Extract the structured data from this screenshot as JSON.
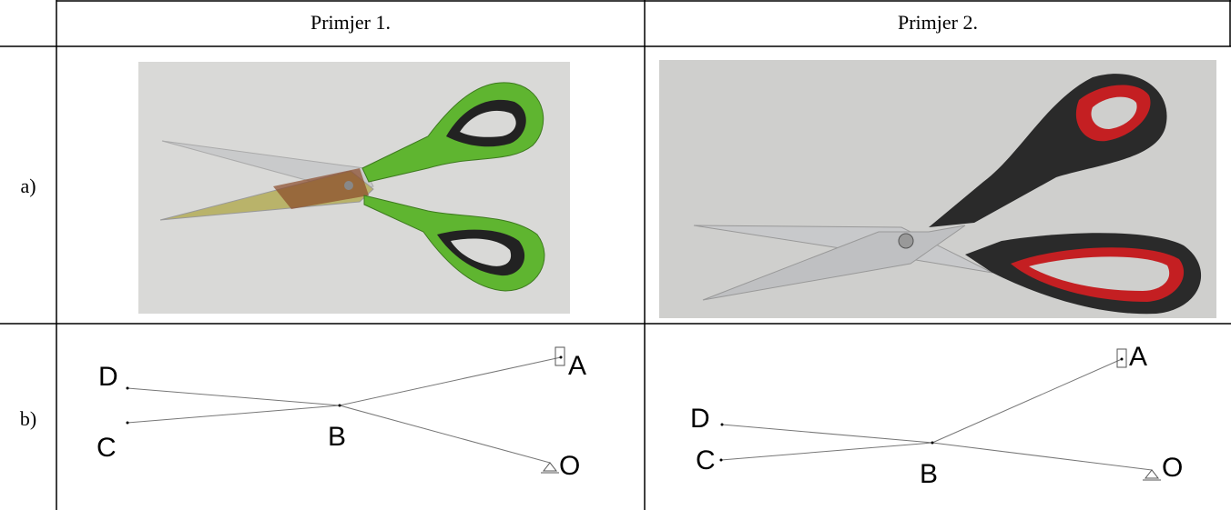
{
  "table": {
    "columns": [
      "Primjer 1.",
      "Primjer 2."
    ],
    "rows": [
      {
        "label": "a)"
      },
      {
        "label": "b)",
        "diagrams": [
          {
            "labels": [
              "D",
              "A",
              "B",
              "C",
              "O"
            ]
          },
          {
            "labels": [
              "D",
              "A",
              "B",
              "C",
              "O"
            ]
          }
        ]
      }
    ]
  }
}
